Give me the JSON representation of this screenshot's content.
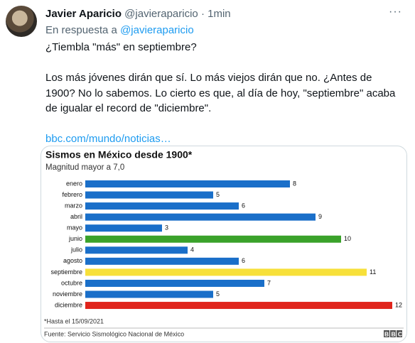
{
  "tweet": {
    "author": "Javier Aparicio",
    "handle": "@javieraparicio",
    "time": "1min",
    "reply_prefix": "En respuesta a",
    "reply_to": "@javieraparicio",
    "paragraphs": [
      "¿Tiembla \"más\" en septiembre?",
      "Los más jóvenes dirán que sí. Lo más viejos dirán que no. ¿Antes de 1900? No lo sabemos. Lo cierto es que, al día de hoy, \"septiembre\" acaba de igualar el record de \"diciembre\"."
    ],
    "link": "bbc.com/mundo/noticias…"
  },
  "chart_data": {
    "type": "bar",
    "orientation": "horizontal",
    "title": "Sismos en México desde 1900*",
    "subtitle": "Magnitud mayor a 7,0",
    "categories": [
      "enero",
      "febrero",
      "marzo",
      "abril",
      "mayo",
      "junio",
      "julio",
      "agosto",
      "septiembre",
      "octubre",
      "noviembre",
      "diciembre"
    ],
    "values": [
      8,
      5,
      6,
      9,
      3,
      10,
      4,
      6,
      11,
      7,
      5,
      12
    ],
    "colors": [
      "#1a6fc9",
      "#1a6fc9",
      "#1a6fc9",
      "#1a6fc9",
      "#1a6fc9",
      "#3aa22a",
      "#1a6fc9",
      "#1a6fc9",
      "#f7e03a",
      "#1a6fc9",
      "#1a6fc9",
      "#e0241b"
    ],
    "xlim": [
      0,
      12
    ],
    "footnote": "*Hasta el 15/09/2021",
    "source": "Fuente: Servicio Sismológico Nacional de México",
    "logo": "BBC"
  }
}
